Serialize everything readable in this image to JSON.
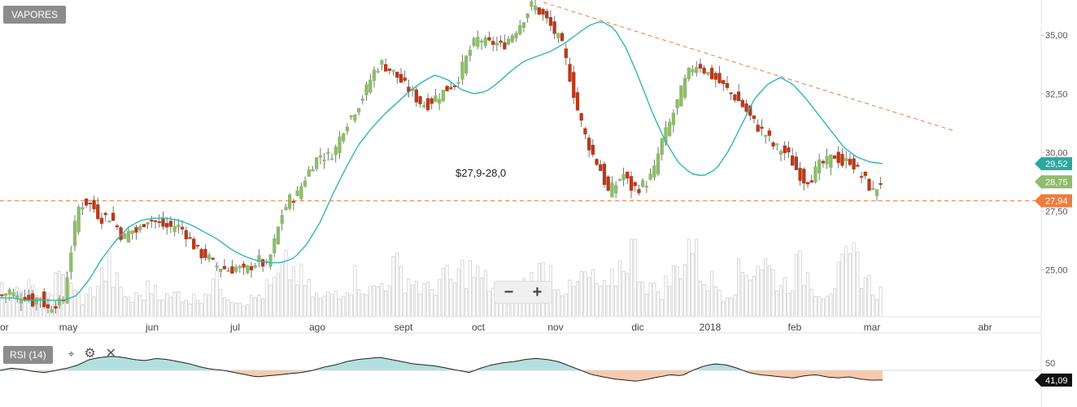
{
  "symbol": "VAPORES",
  "indicator": {
    "label": "RSI (14)",
    "value_label": "41,09",
    "level_label": "50"
  },
  "zoom": {
    "minus": "−",
    "plus": "+"
  },
  "tools": {
    "gear": "⚙",
    "close": "✕",
    "pin": "⌖"
  },
  "annotation": "$27,9-28,0",
  "colors": {
    "up": "#8fbc6c",
    "down": "#b83a1c",
    "ma": "#30b8b0",
    "support": "#f07c3a",
    "rsi_up": "#b3e0de",
    "rsi_down": "#f9c9ad",
    "ma_tag": "#2aa8a0",
    "last_tag": "#8fbc6c",
    "support_tag": "#f07c3a"
  },
  "chart_data": {
    "type": "candlestick",
    "y_ticks": [
      "35,00",
      "32,50",
      "30,00",
      "27,50",
      "25,00"
    ],
    "y_tick_values": [
      35.0,
      32.5,
      30.0,
      27.5,
      25.0
    ],
    "ylim": [
      23.0,
      36.5
    ],
    "x_labels": [
      "or",
      "may",
      "jun",
      "jul",
      "ago",
      "sept",
      "oct",
      "nov",
      "dic",
      "2018",
      "feb",
      "mar",
      "abr"
    ],
    "price_tags": [
      {
        "label": "29,52",
        "value": 29.52,
        "kind": "ma"
      },
      {
        "label": "28,75",
        "value": 28.75,
        "kind": "last"
      },
      {
        "label": "27,94",
        "value": 27.94,
        "kind": "support"
      }
    ],
    "support_level": 27.94,
    "trendline": {
      "from_value": 36.4,
      "to_value": 30.9
    },
    "close_path": [
      23.9,
      24.1,
      23.8,
      23.9,
      23.6,
      23.9,
      23.3,
      23.6,
      23.5,
      25.6,
      27.6,
      27.9,
      27.7,
      27.2,
      27.3,
      27.0,
      26.3,
      26.7,
      26.6,
      27.2,
      27.1,
      26.9,
      26.8,
      26.9,
      26.7,
      26.2,
      25.7,
      25.6,
      25.2,
      25.1,
      25.0,
      25.1,
      24.9,
      25.2,
      25.4,
      25.1,
      26.2,
      27.4,
      28.0,
      28.2,
      28.9,
      29.5,
      29.9,
      29.8,
      30.1,
      31.0,
      31.5,
      32.0,
      32.6,
      33.4,
      33.8,
      33.6,
      33.3,
      32.9,
      32.6,
      32.2,
      32.0,
      32.3,
      32.5,
      32.8,
      33.0,
      33.8,
      34.5,
      34.9,
      34.6,
      34.7,
      34.5,
      34.9,
      35.3,
      35.8,
      36.3,
      36.0,
      35.6,
      35.1,
      34.5,
      33.2,
      31.8,
      30.7,
      29.9,
      29.3,
      28.3,
      28.6,
      29.1,
      28.5,
      28.5,
      28.7,
      29.1,
      30.4,
      31.1,
      32.0,
      32.9,
      33.6,
      33.8,
      33.4,
      33.2,
      32.9,
      32.6,
      32.3,
      31.9,
      31.4,
      31.0,
      30.7,
      30.2,
      30.1,
      29.8,
      29.2,
      28.8,
      29.0,
      29.5,
      29.6,
      29.9,
      29.5,
      29.7,
      29.2,
      28.8,
      28.3,
      28.75
    ],
    "ma_path": [
      23.8,
      23.8,
      23.7,
      23.7,
      23.7,
      23.7,
      23.9,
      24.6,
      25.5,
      26.2,
      26.8,
      27.1,
      27.2,
      27.2,
      27.1,
      26.9,
      26.6,
      26.3,
      25.9,
      25.6,
      25.4,
      25.3,
      25.3,
      25.5,
      26.1,
      27.0,
      28.2,
      29.3,
      30.3,
      31.0,
      31.6,
      32.1,
      32.6,
      33.0,
      33.3,
      33.1,
      32.7,
      32.5,
      32.6,
      33.0,
      33.5,
      33.9,
      34.1,
      34.3,
      34.6,
      35.0,
      35.4,
      35.6,
      35.3,
      34.4,
      33.1,
      31.7,
      30.5,
      29.6,
      29.1,
      29.0,
      29.3,
      30.1,
      31.2,
      32.3,
      32.9,
      33.2,
      32.9,
      32.3,
      31.6,
      30.9,
      30.2,
      29.8,
      29.6,
      29.52
    ],
    "volume_path": [
      0.3,
      0.2,
      0.4,
      0.2,
      0.3,
      0.5,
      0.3,
      0.2,
      0.4,
      0.6,
      0.3,
      0.2,
      0.3,
      0.4,
      0.2,
      0.3,
      0.2,
      0.3,
      0.5,
      0.3,
      0.2,
      0.2,
      0.3,
      0.4,
      0.6,
      0.5,
      0.3,
      0.2,
      0.3,
      0.4,
      0.5,
      0.3,
      0.4,
      0.6,
      0.5,
      0.4,
      0.3,
      0.5,
      0.4,
      0.6,
      0.5,
      0.4,
      0.3,
      0.2,
      0.4,
      0.5,
      0.6,
      0.4,
      0.3,
      0.5,
      0.4,
      0.3,
      0.6,
      0.9,
      0.5,
      0.3,
      0.4,
      0.6,
      1.0,
      0.5,
      0.4,
      0.3,
      0.5,
      0.6,
      0.7,
      0.5,
      0.4,
      0.6,
      0.5,
      0.3,
      0.4,
      0.6,
      0.7,
      0.4,
      0.3
    ],
    "rsi_path": [
      50,
      52,
      51,
      49,
      48,
      50,
      52,
      55,
      60,
      62,
      63,
      62,
      60,
      59,
      61,
      60,
      58,
      56,
      53,
      51,
      50,
      48,
      46,
      44,
      45,
      46,
      47,
      48,
      50,
      53,
      55,
      58,
      60,
      61,
      62,
      60,
      58,
      56,
      55,
      54,
      52,
      50,
      48,
      52,
      55,
      57,
      58,
      60,
      61,
      60,
      58,
      54,
      50,
      46,
      44,
      42,
      41,
      40,
      42,
      44,
      46,
      45,
      50,
      54,
      56,
      55,
      52,
      48,
      46,
      45,
      44,
      43,
      45,
      46,
      44,
      43,
      44,
      42,
      41,
      41.09
    ]
  }
}
